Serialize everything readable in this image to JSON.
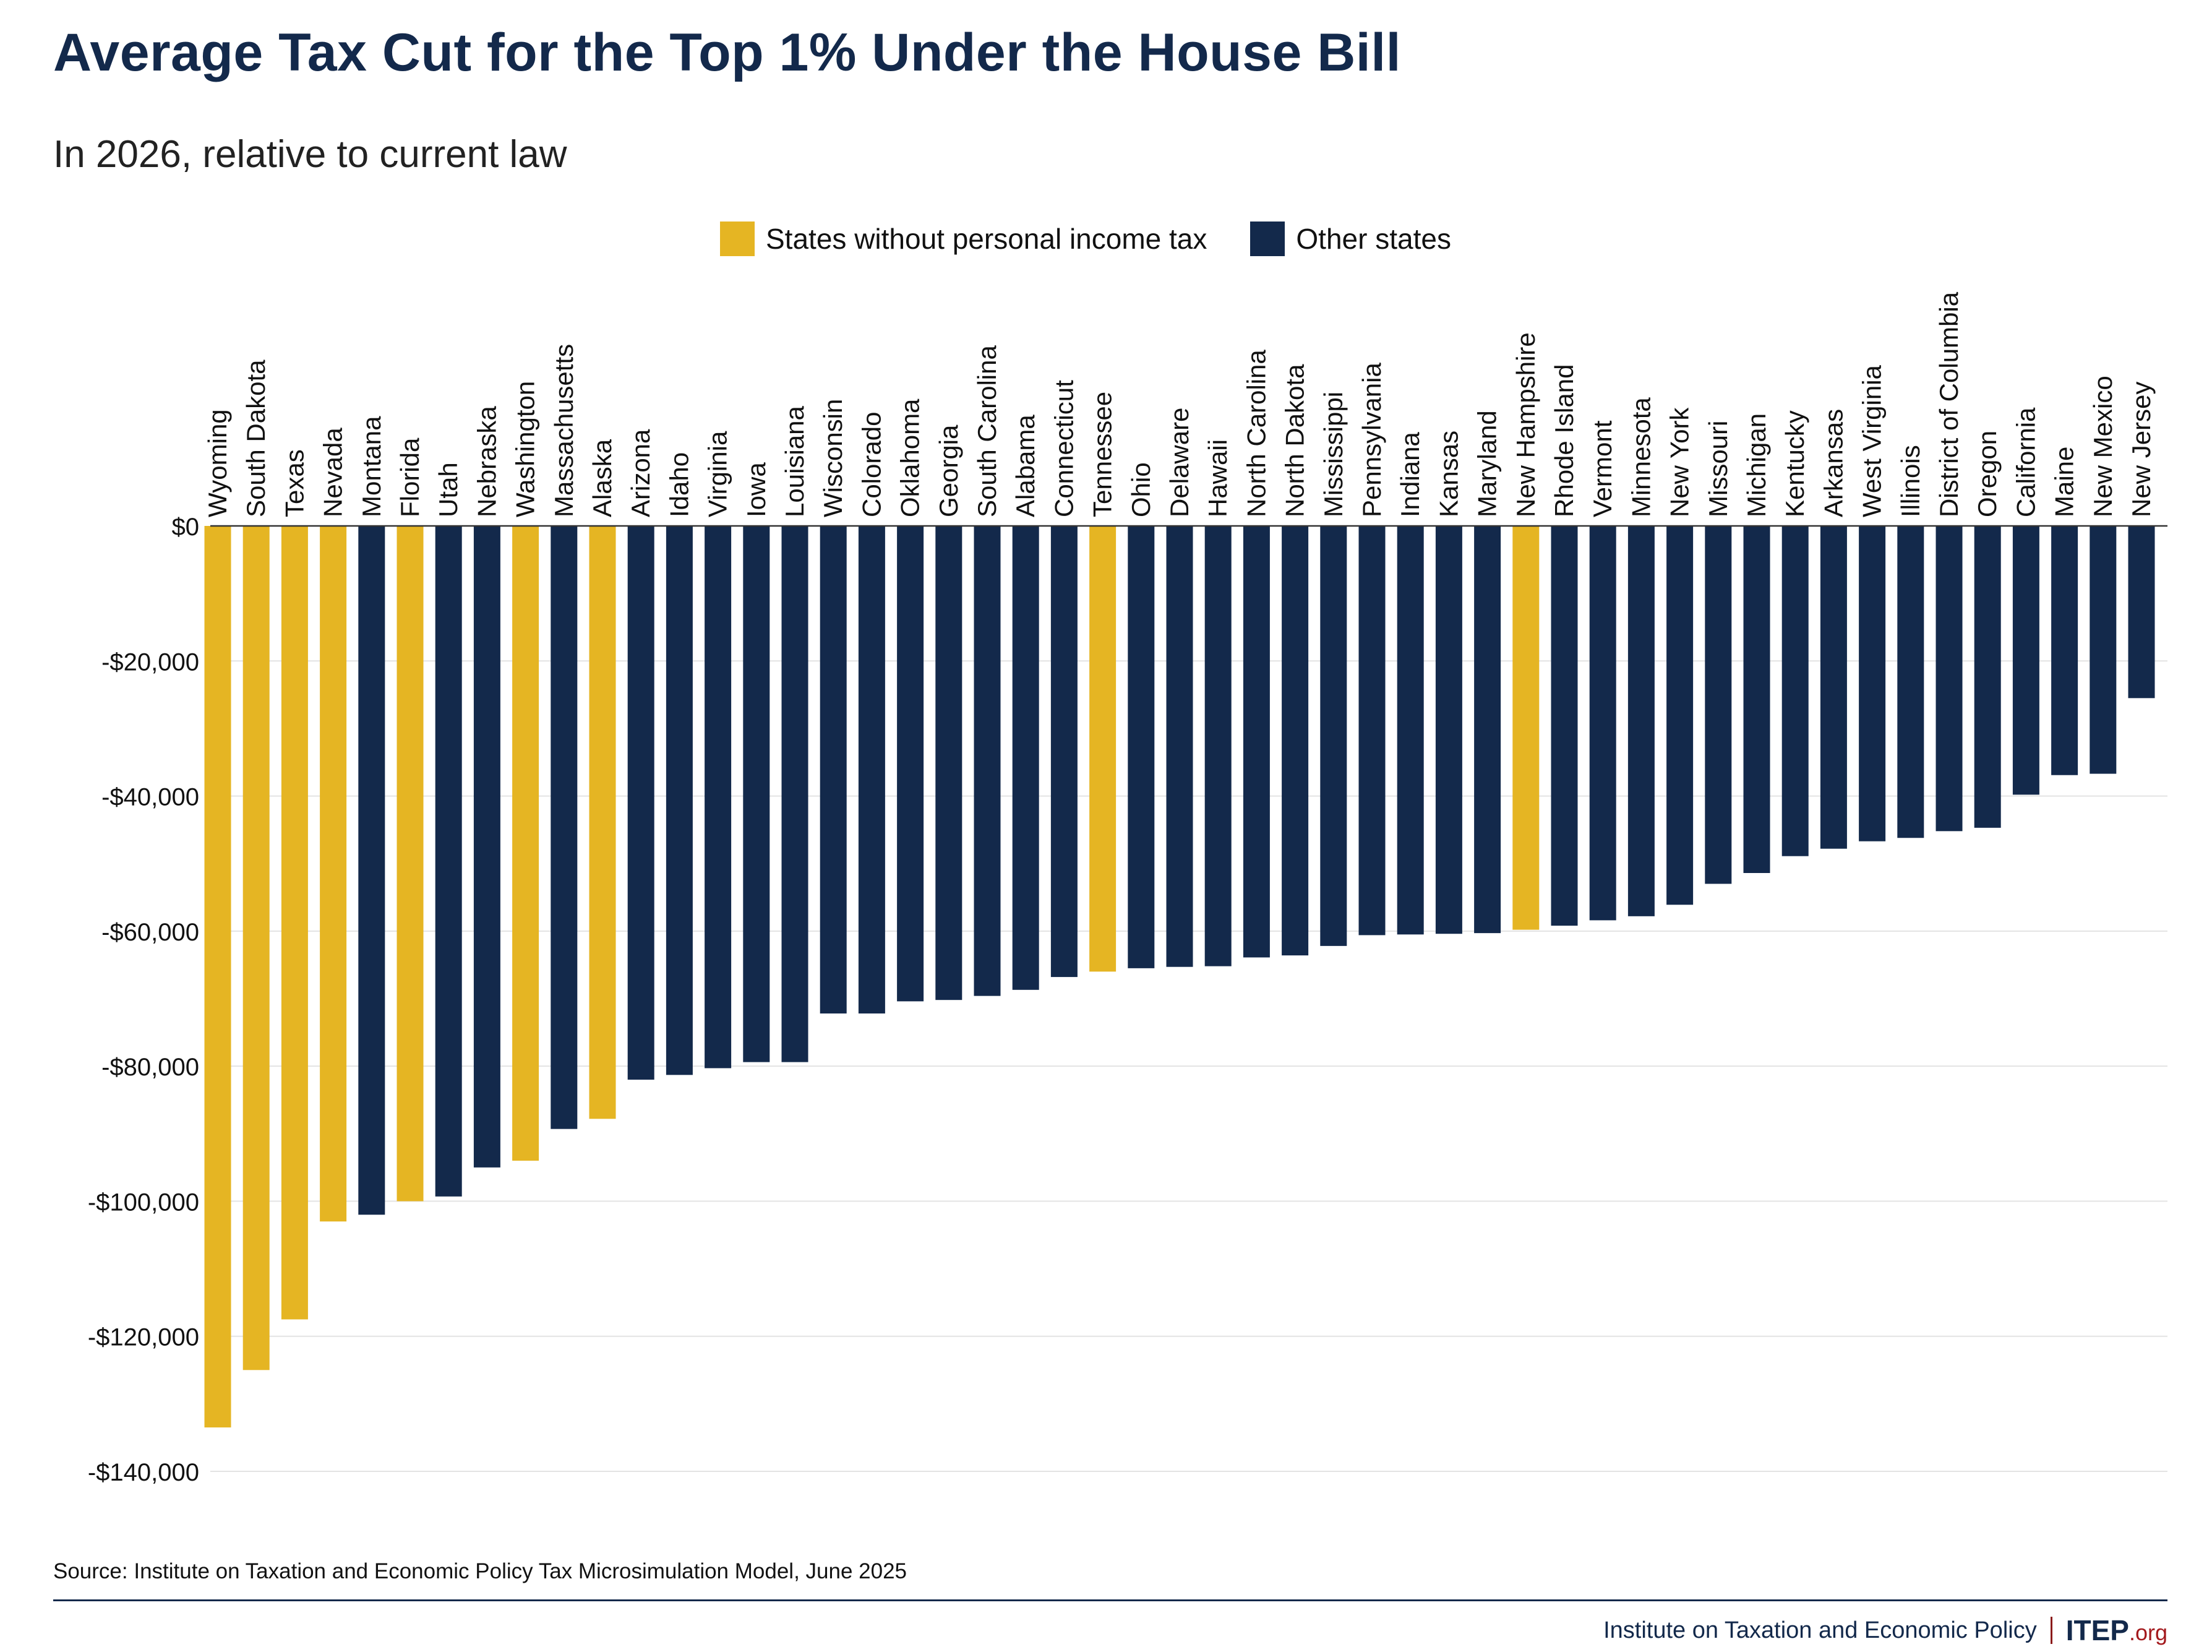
{
  "title": "Average Tax Cut for the Top 1% Under the House Bill",
  "subtitle": "In 2026, relative to current law",
  "source": "Source: Institute on Taxation and Economic Policy Tax Microsimulation Model, June 2025",
  "footer": {
    "org": "Institute on Taxation and Economic Policy",
    "logo_main": "ITEP",
    "logo_tld": ".org"
  },
  "colors": {
    "no_income_tax": "#e5b523",
    "other": "#13294b",
    "grid": "#e3e3e3",
    "zero_line": "#333333"
  },
  "legend": [
    {
      "label": "States without personal income tax",
      "color": "#e5b523"
    },
    {
      "label": "Other states",
      "color": "#13294b"
    }
  ],
  "chart_data": {
    "type": "bar",
    "title": "Average Tax Cut for the Top 1% Under the House Bill",
    "subtitle": "In 2026, relative to current law",
    "ylim": [
      -140000,
      0
    ],
    "yticks": [
      0,
      -20000,
      -40000,
      -60000,
      -80000,
      -100000,
      -120000,
      -140000
    ],
    "ytick_labels": [
      "$0",
      "-$20,000",
      "-$40,000",
      "-$60,000",
      "-$80,000",
      "-$100,000",
      "-$120,000",
      "-$140,000"
    ],
    "grid": true,
    "legend_position": "top-center",
    "categories": [
      "Wyoming",
      "South Dakota",
      "Texas",
      "Nevada",
      "Montana",
      "Florida",
      "Utah",
      "Nebraska",
      "Washington",
      "Massachusetts",
      "Alaska",
      "Arizona",
      "Idaho",
      "Virginia",
      "Iowa",
      "Louisiana",
      "Wisconsin",
      "Colorado",
      "Oklahoma",
      "Georgia",
      "South Carolina",
      "Alabama",
      "Connecticut",
      "Tennessee",
      "Ohio",
      "Delaware",
      "Hawaii",
      "North Carolina",
      "North Dakota",
      "Mississippi",
      "Pennsylvania",
      "Indiana",
      "Kansas",
      "Maryland",
      "New Hampshire",
      "Rhode Island",
      "Vermont",
      "Minnesota",
      "New York",
      "Missouri",
      "Michigan",
      "Kentucky",
      "Arkansas",
      "West Virginia",
      "Illinois",
      "District of Columbia",
      "Oregon",
      "California",
      "Maine",
      "New Mexico",
      "New Jersey"
    ],
    "values": [
      -133500,
      -125000,
      -117500,
      -103000,
      -102000,
      -100000,
      -99300,
      -95000,
      -94000,
      -89300,
      -87800,
      -82000,
      -81300,
      -80300,
      -79400,
      -79400,
      -72200,
      -72200,
      -70400,
      -70200,
      -69600,
      -68700,
      -66800,
      -66000,
      -65500,
      -65300,
      -65200,
      -63900,
      -63600,
      -62200,
      -60600,
      -60500,
      -60400,
      -60300,
      -59800,
      -59200,
      -58400,
      -57800,
      -56100,
      -53000,
      -51400,
      -48900,
      -47800,
      -46700,
      -46200,
      -45200,
      -44700,
      -39800,
      -36900,
      -36700,
      -25500
    ],
    "no_income_tax": [
      true,
      true,
      true,
      true,
      false,
      true,
      false,
      false,
      true,
      false,
      true,
      false,
      false,
      false,
      false,
      false,
      false,
      false,
      false,
      false,
      false,
      false,
      false,
      true,
      false,
      false,
      false,
      false,
      false,
      false,
      false,
      false,
      false,
      false,
      true,
      false,
      false,
      false,
      false,
      false,
      false,
      false,
      false,
      false,
      false,
      false,
      false,
      false,
      false,
      false,
      false
    ]
  }
}
